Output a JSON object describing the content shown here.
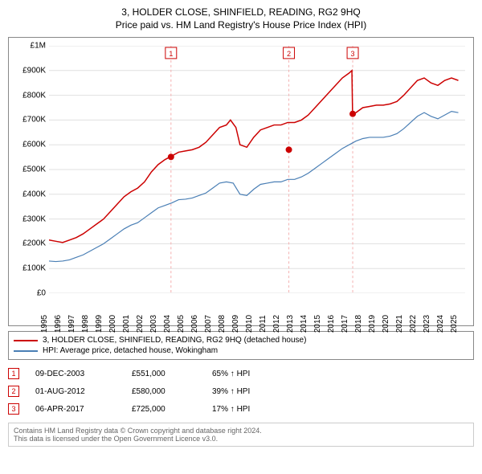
{
  "title": "3, HOLDER CLOSE, SHINFIELD, READING, RG2 9HQ",
  "subtitle": "Price paid vs. HM Land Registry's House Price Index (HPI)",
  "chart": {
    "type": "line",
    "background_color": "#ffffff",
    "grid_color": "#e0e0e0",
    "border_color": "#888888",
    "x_range": [
      1995,
      2025.5
    ],
    "y_range": [
      0,
      1000000
    ],
    "y_ticks": [
      0,
      100000,
      200000,
      300000,
      400000,
      500000,
      600000,
      700000,
      800000,
      900000,
      1000000
    ],
    "y_tick_labels": [
      "£0",
      "£100K",
      "£200K",
      "£300K",
      "£400K",
      "£500K",
      "£600K",
      "£700K",
      "£800K",
      "£900K",
      "£1M"
    ],
    "x_ticks": [
      1995,
      1996,
      1997,
      1998,
      1999,
      2000,
      2001,
      2002,
      2003,
      2004,
      2005,
      2006,
      2007,
      2008,
      2009,
      2010,
      2011,
      2012,
      2013,
      2014,
      2015,
      2016,
      2017,
      2018,
      2019,
      2020,
      2021,
      2022,
      2023,
      2024,
      2025
    ],
    "label_fontsize": 10,
    "series_property": {
      "label": "3, HOLDER CLOSE, SHINFIELD, READING, RG2 9HQ (detached house)",
      "color": "#cc0000",
      "line_width": 1.5,
      "data": [
        [
          1995,
          215000
        ],
        [
          1995.5,
          210000
        ],
        [
          1996,
          205000
        ],
        [
          1996.5,
          215000
        ],
        [
          1997,
          225000
        ],
        [
          1997.5,
          240000
        ],
        [
          1998,
          260000
        ],
        [
          1998.5,
          280000
        ],
        [
          1999,
          300000
        ],
        [
          1999.5,
          330000
        ],
        [
          2000,
          360000
        ],
        [
          2000.5,
          390000
        ],
        [
          2001,
          410000
        ],
        [
          2001.5,
          425000
        ],
        [
          2002,
          450000
        ],
        [
          2002.5,
          490000
        ],
        [
          2003,
          520000
        ],
        [
          2003.5,
          540000
        ],
        [
          2004,
          555000
        ],
        [
          2004.5,
          570000
        ],
        [
          2005,
          575000
        ],
        [
          2005.5,
          580000
        ],
        [
          2006,
          590000
        ],
        [
          2006.5,
          610000
        ],
        [
          2007,
          640000
        ],
        [
          2007.5,
          670000
        ],
        [
          2008,
          680000
        ],
        [
          2008.3,
          700000
        ],
        [
          2008.7,
          670000
        ],
        [
          2009,
          600000
        ],
        [
          2009.5,
          590000
        ],
        [
          2010,
          630000
        ],
        [
          2010.5,
          660000
        ],
        [
          2011,
          670000
        ],
        [
          2011.5,
          680000
        ],
        [
          2012,
          680000
        ],
        [
          2012.5,
          690000
        ],
        [
          2013,
          690000
        ],
        [
          2013.5,
          700000
        ],
        [
          2014,
          720000
        ],
        [
          2014.5,
          750000
        ],
        [
          2015,
          780000
        ],
        [
          2015.5,
          810000
        ],
        [
          2016,
          840000
        ],
        [
          2016.5,
          870000
        ],
        [
          2017,
          890000
        ],
        [
          2017.2,
          900000
        ],
        [
          2017.25,
          725000
        ],
        [
          2017.5,
          730000
        ],
        [
          2018,
          750000
        ],
        [
          2018.5,
          755000
        ],
        [
          2019,
          760000
        ],
        [
          2019.5,
          760000
        ],
        [
          2020,
          765000
        ],
        [
          2020.5,
          775000
        ],
        [
          2021,
          800000
        ],
        [
          2021.5,
          830000
        ],
        [
          2022,
          860000
        ],
        [
          2022.5,
          870000
        ],
        [
          2023,
          850000
        ],
        [
          2023.5,
          840000
        ],
        [
          2024,
          860000
        ],
        [
          2024.5,
          870000
        ],
        [
          2025,
          860000
        ]
      ]
    },
    "series_hpi": {
      "label": "HPI: Average price, detached house, Wokingham",
      "color": "#4a7fb5",
      "line_width": 1.2,
      "data": [
        [
          1995,
          130000
        ],
        [
          1995.5,
          128000
        ],
        [
          1996,
          130000
        ],
        [
          1996.5,
          135000
        ],
        [
          1997,
          145000
        ],
        [
          1997.5,
          155000
        ],
        [
          1998,
          170000
        ],
        [
          1998.5,
          185000
        ],
        [
          1999,
          200000
        ],
        [
          1999.5,
          220000
        ],
        [
          2000,
          240000
        ],
        [
          2000.5,
          260000
        ],
        [
          2001,
          275000
        ],
        [
          2001.5,
          285000
        ],
        [
          2002,
          305000
        ],
        [
          2002.5,
          325000
        ],
        [
          2003,
          345000
        ],
        [
          2003.5,
          355000
        ],
        [
          2004,
          365000
        ],
        [
          2004.5,
          378000
        ],
        [
          2005,
          380000
        ],
        [
          2005.5,
          385000
        ],
        [
          2006,
          395000
        ],
        [
          2006.5,
          405000
        ],
        [
          2007,
          425000
        ],
        [
          2007.5,
          445000
        ],
        [
          2008,
          450000
        ],
        [
          2008.5,
          445000
        ],
        [
          2009,
          400000
        ],
        [
          2009.5,
          395000
        ],
        [
          2010,
          420000
        ],
        [
          2010.5,
          440000
        ],
        [
          2011,
          445000
        ],
        [
          2011.5,
          450000
        ],
        [
          2012,
          450000
        ],
        [
          2012.5,
          460000
        ],
        [
          2013,
          460000
        ],
        [
          2013.5,
          470000
        ],
        [
          2014,
          485000
        ],
        [
          2014.5,
          505000
        ],
        [
          2015,
          525000
        ],
        [
          2015.5,
          545000
        ],
        [
          2016,
          565000
        ],
        [
          2016.5,
          585000
        ],
        [
          2017,
          600000
        ],
        [
          2017.5,
          615000
        ],
        [
          2018,
          625000
        ],
        [
          2018.5,
          630000
        ],
        [
          2019,
          630000
        ],
        [
          2019.5,
          630000
        ],
        [
          2020,
          635000
        ],
        [
          2020.5,
          645000
        ],
        [
          2021,
          665000
        ],
        [
          2021.5,
          690000
        ],
        [
          2022,
          715000
        ],
        [
          2022.5,
          730000
        ],
        [
          2023,
          715000
        ],
        [
          2023.5,
          705000
        ],
        [
          2024,
          720000
        ],
        [
          2024.5,
          735000
        ],
        [
          2025,
          730000
        ]
      ]
    },
    "sale_markers": [
      {
        "n": "1",
        "x": 2003.94,
        "y": 551000,
        "color": "#cc0000"
      },
      {
        "n": "2",
        "x": 2012.58,
        "y": 580000,
        "color": "#cc0000"
      },
      {
        "n": "3",
        "x": 2017.26,
        "y": 725000,
        "color": "#cc0000"
      }
    ],
    "marker_line_color": "#f4b0b0"
  },
  "legend": [
    {
      "color": "#cc0000",
      "label": "3, HOLDER CLOSE, SHINFIELD, READING, RG2 9HQ (detached house)"
    },
    {
      "color": "#4a7fb5",
      "label": "HPI: Average price, detached house, Wokingham"
    }
  ],
  "events": [
    {
      "n": "1",
      "color": "#cc0000",
      "date": "09-DEC-2003",
      "price": "£551,000",
      "diff": "65% ↑ HPI"
    },
    {
      "n": "2",
      "color": "#cc0000",
      "date": "01-AUG-2012",
      "price": "£580,000",
      "diff": "39% ↑ HPI"
    },
    {
      "n": "3",
      "color": "#cc0000",
      "date": "06-APR-2017",
      "price": "£725,000",
      "diff": "17% ↑ HPI"
    }
  ],
  "footer_line1": "Contains HM Land Registry data © Crown copyright and database right 2024.",
  "footer_line2": "This data is licensed under the Open Government Licence v3.0."
}
